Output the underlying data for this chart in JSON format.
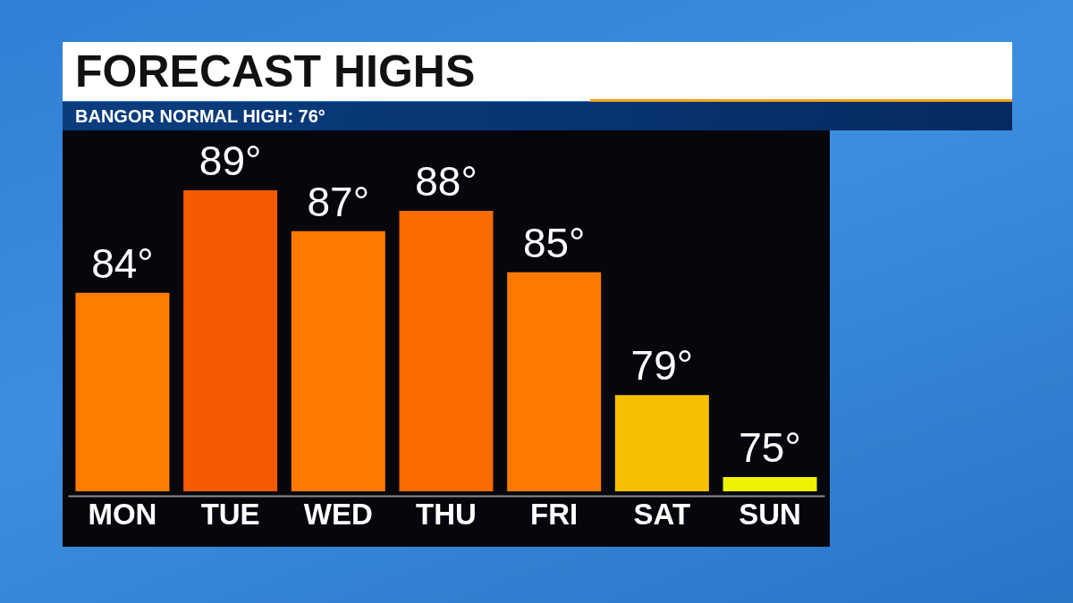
{
  "chart_data": {
    "type": "bar",
    "title": "FORECAST HIGHS",
    "subtitle": "BANGOR NORMAL HIGH: 76°",
    "categories": [
      "MON",
      "TUE",
      "WED",
      "THU",
      "FRI",
      "SAT",
      "SUN"
    ],
    "values": [
      84,
      89,
      87,
      88,
      85,
      79,
      75
    ],
    "value_labels": [
      "84°",
      "89°",
      "87°",
      "88°",
      "85°",
      "79°",
      "75°"
    ],
    "colors": [
      "#fe7d00",
      "#f75a00",
      "#fe7a00",
      "#fa6b00",
      "#fe7a00",
      "#f5c000",
      "#eef100"
    ],
    "ylim": [
      74.3,
      89
    ],
    "tick_labels": "x"
  }
}
